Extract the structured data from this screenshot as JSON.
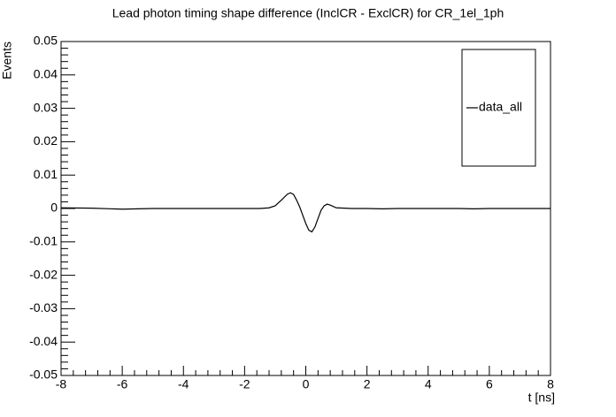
{
  "chart_data": {
    "type": "line",
    "title": "Lead photon timing shape difference (InclCR - ExclCR) for CR_1el_1ph",
    "x_label": "t [ns]",
    "y_label": "Events",
    "x": [
      -8,
      -7,
      -6,
      -5,
      -4,
      -3,
      -2,
      -1.5,
      -1.2,
      -1.0,
      -0.8,
      -0.6,
      -0.5,
      -0.4,
      -0.3,
      -0.2,
      -0.1,
      0,
      0.1,
      0.2,
      0.3,
      0.4,
      0.5,
      0.6,
      0.7,
      0.8,
      1.0,
      1.5,
      2,
      2.5,
      3,
      4,
      5,
      5.5,
      6,
      7,
      8
    ],
    "series": [
      {
        "name": "data_all",
        "color": "#000000",
        "values": [
          0.0002,
          0.0001,
          -0.0002,
          0,
          0,
          0,
          0,
          0,
          0.0002,
          0.0008,
          0.0025,
          0.0043,
          0.0047,
          0.0042,
          0.0025,
          0.0005,
          -0.002,
          -0.0045,
          -0.0065,
          -0.007,
          -0.0055,
          -0.003,
          -0.0005,
          0.0008,
          0.0013,
          0.001,
          0.0002,
          0,
          0,
          -0.0001,
          0,
          0,
          0,
          -0.0001,
          0,
          0,
          0
        ]
      }
    ],
    "xlim": [
      -8,
      8
    ],
    "xticks": [
      -8,
      -6,
      -4,
      -2,
      0,
      2,
      4,
      6,
      8
    ],
    "ylim": [
      -0.05,
      0.05
    ],
    "yticks": [
      -0.05,
      -0.04,
      -0.03,
      -0.02,
      -0.01,
      0,
      0.01,
      0.02,
      0.03,
      0.04,
      0.05
    ],
    "grid": false,
    "legend": "upper right"
  }
}
